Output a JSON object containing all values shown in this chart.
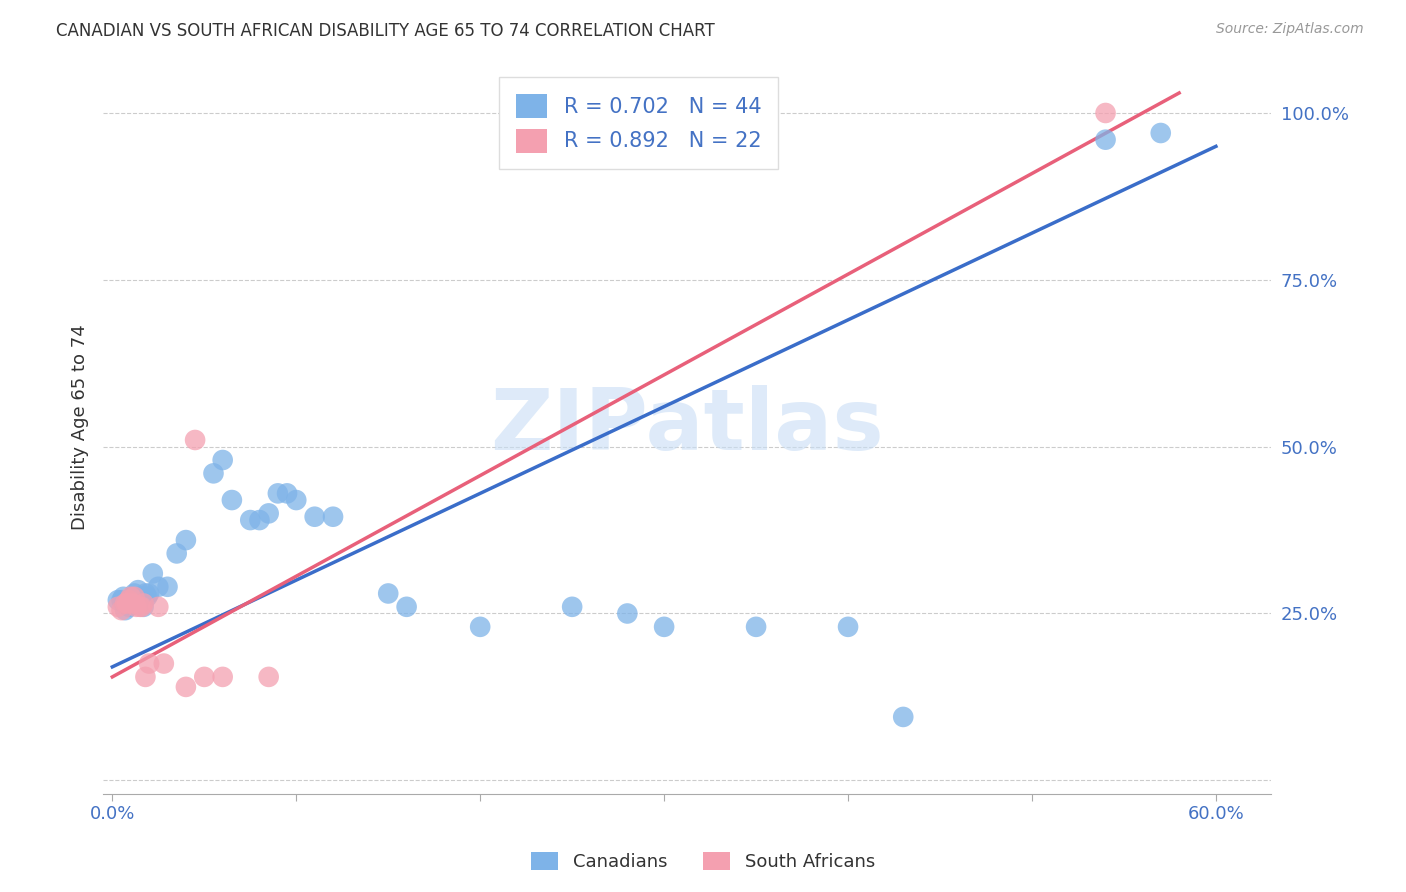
{
  "title": "CANADIAN VS SOUTH AFRICAN DISABILITY AGE 65 TO 74 CORRELATION CHART",
  "source": "Source: ZipAtlas.com",
  "ylabel": "Disability Age 65 to 74",
  "xlim": [
    -0.005,
    0.63
  ],
  "ylim": [
    -0.02,
    1.08
  ],
  "canadian_R": 0.702,
  "canadian_N": 44,
  "sa_R": 0.892,
  "sa_N": 22,
  "canadian_color": "#7EB3E8",
  "sa_color": "#F4A0B0",
  "canadian_line_color": "#3A6DC9",
  "sa_line_color": "#E8607A",
  "watermark_text": "ZIPatlas",
  "background_color": "#FFFFFF",
  "canadian_x": [
    0.003,
    0.005,
    0.006,
    0.007,
    0.008,
    0.009,
    0.01,
    0.011,
    0.012,
    0.013,
    0.014,
    0.015,
    0.016,
    0.017,
    0.018,
    0.019,
    0.02,
    0.022,
    0.025,
    0.03,
    0.035,
    0.04,
    0.055,
    0.06,
    0.065,
    0.075,
    0.08,
    0.085,
    0.09,
    0.095,
    0.1,
    0.11,
    0.12,
    0.15,
    0.16,
    0.2,
    0.25,
    0.28,
    0.3,
    0.35,
    0.4,
    0.43,
    0.54,
    0.57
  ],
  "canadian_y": [
    0.27,
    0.27,
    0.275,
    0.255,
    0.265,
    0.26,
    0.265,
    0.27,
    0.28,
    0.27,
    0.285,
    0.265,
    0.275,
    0.26,
    0.28,
    0.275,
    0.28,
    0.31,
    0.29,
    0.29,
    0.34,
    0.36,
    0.46,
    0.48,
    0.42,
    0.39,
    0.39,
    0.4,
    0.43,
    0.43,
    0.42,
    0.395,
    0.395,
    0.28,
    0.26,
    0.23,
    0.26,
    0.25,
    0.23,
    0.23,
    0.23,
    0.095,
    0.96,
    0.97
  ],
  "sa_x": [
    0.003,
    0.005,
    0.007,
    0.008,
    0.009,
    0.01,
    0.011,
    0.012,
    0.013,
    0.015,
    0.016,
    0.017,
    0.018,
    0.02,
    0.025,
    0.028,
    0.04,
    0.045,
    0.05,
    0.06,
    0.085,
    0.54
  ],
  "sa_y": [
    0.26,
    0.255,
    0.265,
    0.265,
    0.27,
    0.275,
    0.265,
    0.275,
    0.26,
    0.26,
    0.26,
    0.265,
    0.155,
    0.175,
    0.26,
    0.175,
    0.14,
    0.51,
    0.155,
    0.155,
    0.155,
    1.0
  ],
  "canadian_line_x": [
    0.0,
    0.6
  ],
  "canadian_line_y": [
    0.17,
    0.95
  ],
  "sa_line_x": [
    0.0,
    0.58
  ],
  "sa_line_y": [
    0.155,
    1.03
  ]
}
